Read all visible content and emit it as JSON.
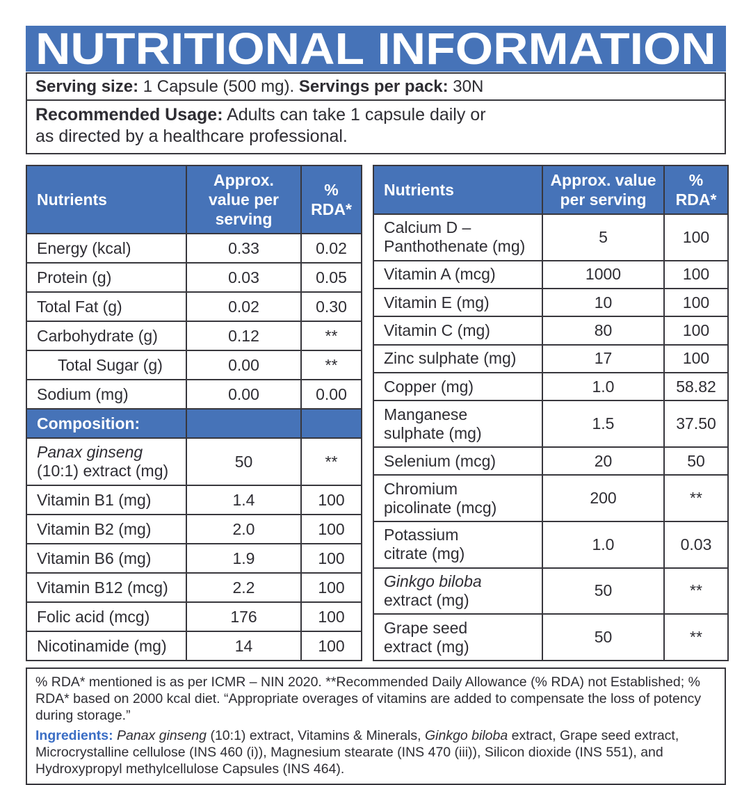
{
  "colors": {
    "accent_blue": "#4673b8",
    "border_dark": "#38373d",
    "text_dark": "#2e2d33",
    "ingredients_label_blue": "#3a6dc4"
  },
  "header": {
    "title": "NUTRITIONAL INFORMATION",
    "serving": {
      "label1": "Serving size:",
      "value1": " 1 Capsule (500 mg). ",
      "label2": "Servings per pack:",
      "value2": " 30N"
    },
    "usage": {
      "label": "Recommended Usage:",
      "text": " Adults can take 1 capsule daily or\nas directed by a healthcare professional."
    }
  },
  "columns": {
    "nutrients": "Nutrients",
    "value": "Approx. value per serving",
    "rda": "% RDA*"
  },
  "left_table": {
    "rows": [
      {
        "name": "Energy (kcal)",
        "value": "0.33",
        "rda": "0.02"
      },
      {
        "name": "Protein (g)",
        "value": "0.03",
        "rda": "0.05"
      },
      {
        "name": "Total Fat (g)",
        "value": "0.02",
        "rda": "0.30"
      },
      {
        "name": "Carbohydrate (g)",
        "value": "0.12",
        "rda": "**"
      },
      {
        "name": "Total Sugar (g)",
        "value": "0.00",
        "rda": "**",
        "indent": true
      },
      {
        "name": "Sodium (mg)",
        "value": "0.00",
        "rda": "0.00"
      },
      {
        "section": "Composition:"
      },
      {
        "name_parts": [
          {
            "text": "Panax ginseng",
            "italic": true
          },
          {
            "text": "\n(10:1) extract (mg)"
          }
        ],
        "value": "50",
        "rda": "**"
      },
      {
        "name": "Vitamin B1 (mg)",
        "value": "1.4",
        "rda": "100"
      },
      {
        "name": "Vitamin B2 (mg)",
        "value": "2.0",
        "rda": "100"
      },
      {
        "name": "Vitamin B6 (mg)",
        "value": "1.9",
        "rda": "100"
      },
      {
        "name": "Vitamin B12 (mcg)",
        "value": "2.2",
        "rda": "100"
      },
      {
        "name": "Folic acid (mcg)",
        "value": "176",
        "rda": "100"
      },
      {
        "name": "Nicotinamide (mg)",
        "value": "14",
        "rda": "100"
      }
    ]
  },
  "right_table": {
    "rows": [
      {
        "name": "Calcium D –\nPanthothenate (mg)",
        "value": "5",
        "rda": "100"
      },
      {
        "name": "Vitamin A (mcg)",
        "value": "1000",
        "rda": "100"
      },
      {
        "name": "Vitamin E (mg)",
        "value": "10",
        "rda": "100"
      },
      {
        "name": "Vitamin C (mg)",
        "value": "80",
        "rda": "100"
      },
      {
        "name": "Zinc sulphate (mg)",
        "value": "17",
        "rda": "100"
      },
      {
        "name": "Copper (mg)",
        "value": "1.0",
        "rda": "58.82"
      },
      {
        "name": "Manganese\nsulphate (mg)",
        "value": "1.5",
        "rda": "37.50"
      },
      {
        "name": "Selenium (mcg)",
        "value": "20",
        "rda": "50"
      },
      {
        "name": "Chromium\npicolinate (mcg)",
        "value": "200",
        "rda": "**"
      },
      {
        "name": "Potassium\ncitrate (mg)",
        "value": "1.0",
        "rda": "0.03"
      },
      {
        "name_parts": [
          {
            "text": "Ginkgo biloba",
            "italic": true
          },
          {
            "text": "\nextract (mg)"
          }
        ],
        "value": "50",
        "rda": "**"
      },
      {
        "name": "Grape seed\nextract (mg)",
        "value": "50",
        "rda": "**"
      }
    ]
  },
  "footer": {
    "footnote": "% RDA* mentioned is as per ICMR – NIN 2020. **Recommended Daily Allowance (% RDA) not Established; % RDA* based on 2000 kcal diet. “Appropriate overages of vitamins are added to compensate the loss of potency during storage.”",
    "ingredients_label": "Ingredients:",
    "ingredients_parts": [
      {
        "text": " "
      },
      {
        "text": "Panax ginseng",
        "italic": true
      },
      {
        "text": " (10:1) extract, Vitamins & Minerals, "
      },
      {
        "text": "Ginkgo biloba",
        "italic": true
      },
      {
        "text": " extract, Grape seed extract, Microcrystalline cellulose (INS 460 (i)), Magnesium stearate (INS 470 (iii)), Silicon dioxide (INS 551), and Hydroxypropyl methylcellulose Capsules (INS 464)."
      }
    ]
  }
}
